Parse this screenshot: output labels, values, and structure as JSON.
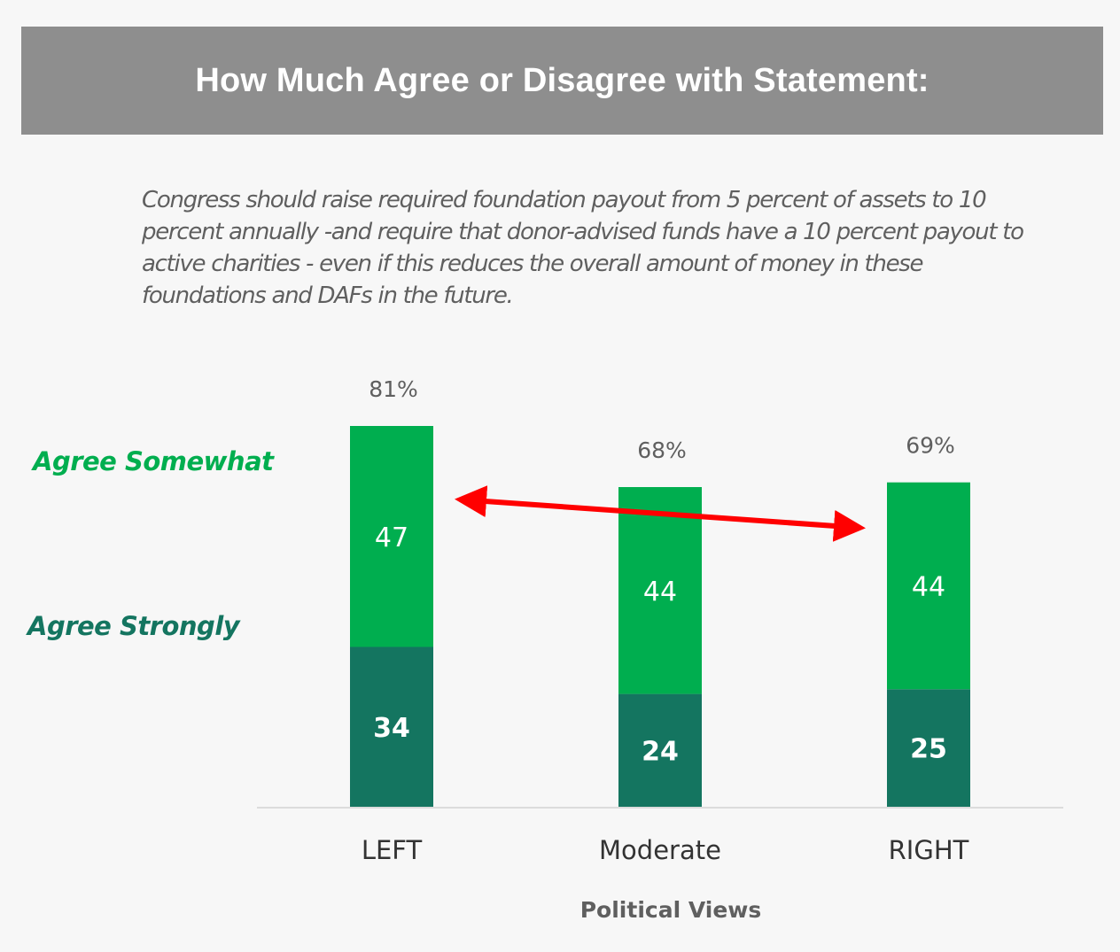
{
  "header": {
    "title": "How Much Agree or Disagree with Statement:"
  },
  "statement": "Congress should raise required foundation payout from 5 percent of assets to 10 percent annually -and require that donor-advised funds have a 10 percent payout to active charities - even if this reduces the overall amount of money in these foundations and DAFs in the future.",
  "colors": {
    "agree_somewhat": "#00ae4f",
    "agree_strongly": "#147560",
    "arrow": "#ff0000",
    "header_bg": "#8e8e8e",
    "total_label": "#5f5f5f",
    "category_label": "#333333"
  },
  "chart_data": {
    "type": "bar",
    "stacked": true,
    "title": "How Much Agree or Disagree with Statement:",
    "xlabel": "Political Views",
    "ylabel": "",
    "categories": [
      "LEFT",
      "Moderate",
      "RIGHT"
    ],
    "series": [
      {
        "name": "Agree Strongly",
        "values": [
          34,
          24,
          25
        ]
      },
      {
        "name": "Agree Somewhat",
        "values": [
          47,
          44,
          44
        ]
      }
    ],
    "totals": [
      81,
      68,
      69
    ],
    "total_labels": [
      "81%",
      "68%",
      "69%"
    ],
    "ylim": [
      0,
      81
    ],
    "grid": false,
    "legend": "left",
    "annotations": [
      {
        "type": "double-arrow",
        "from_category": "LEFT",
        "to_category": "RIGHT",
        "color": "red"
      }
    ]
  }
}
